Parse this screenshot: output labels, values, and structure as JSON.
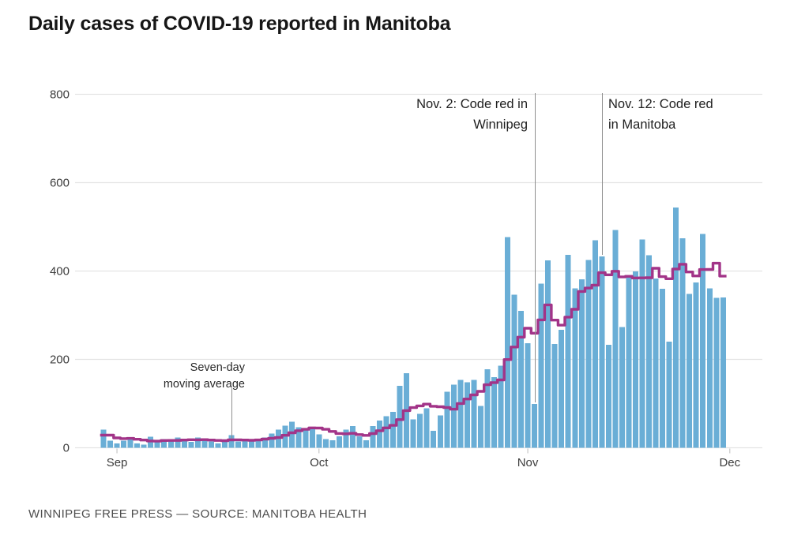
{
  "page": {
    "title": "Daily cases of COVID-19 reported in Manitoba",
    "footer": "WINNIPEG FREE PRESS — SOURCE: MANITOBA HEALTH"
  },
  "chart_data": {
    "type": "bar",
    "title": "Daily cases of COVID-19 reported in Manitoba",
    "xlabel": "",
    "ylabel": "",
    "x_start_date": "Aug 30",
    "x_end_date": "Nov 30",
    "x_tick_labels": [
      "Sep",
      "Oct",
      "Nov",
      "Dec"
    ],
    "x_tick_day_indices": [
      2,
      32,
      63,
      93
    ],
    "y_ticks": [
      0,
      200,
      400,
      600,
      800
    ],
    "ylim": [
      0,
      800
    ],
    "grid": "horizontal",
    "legend_position": "none",
    "series": [
      {
        "name": "Daily cases",
        "type": "bar",
        "color": "#6aaed6",
        "values": [
          41,
          16,
          10,
          16,
          23,
          10,
          7,
          25,
          14,
          20,
          17,
          23,
          16,
          13,
          23,
          17,
          14,
          10,
          19,
          29,
          14,
          19,
          14,
          19,
          23,
          32,
          41,
          50,
          59,
          46,
          41,
          46,
          30,
          20,
          17,
          26,
          41,
          49,
          26,
          17,
          49,
          62,
          71,
          81,
          140,
          169,
          64,
          77,
          89,
          38,
          73,
          127,
          143,
          154,
          148,
          154,
          95,
          178,
          160,
          186,
          477,
          346,
          310,
          237,
          99,
          371,
          424,
          235,
          267,
          437,
          361,
          381,
          425,
          470,
          433,
          233,
          493,
          273,
          389,
          399,
          471,
          436,
          383,
          360,
          240,
          544,
          474,
          348,
          374,
          484,
          361,
          339,
          340
        ]
      },
      {
        "name": "Seven-day moving average",
        "type": "step-line",
        "color": "#a23488",
        "derived_from": "Daily cases",
        "window_days": 7
      }
    ],
    "annotations": [
      {
        "id": "seven-day",
        "lines": [
          "Seven-day",
          "moving average"
        ],
        "align": "right",
        "day_index": 19,
        "points_to": "ma-line"
      },
      {
        "id": "nov2",
        "lines": [
          "Nov. 2: Code red in",
          "Winnipeg"
        ],
        "align": "right",
        "day_index": 64,
        "points_to": "bar-top"
      },
      {
        "id": "nov12",
        "lines": [
          "Nov. 12: Code red",
          "in Manitoba"
        ],
        "align": "left",
        "day_index": 74,
        "points_to": "bar-top"
      }
    ],
    "colors": {
      "bar": "#6aaed6",
      "moving_average_line": "#a23488",
      "gridline": "#e4e4e4",
      "annotation_pointer": "#8f8f8f",
      "axis_text": "#3d3d3d",
      "title_text": "#161616",
      "footer_text": "#4d4d4d"
    }
  }
}
